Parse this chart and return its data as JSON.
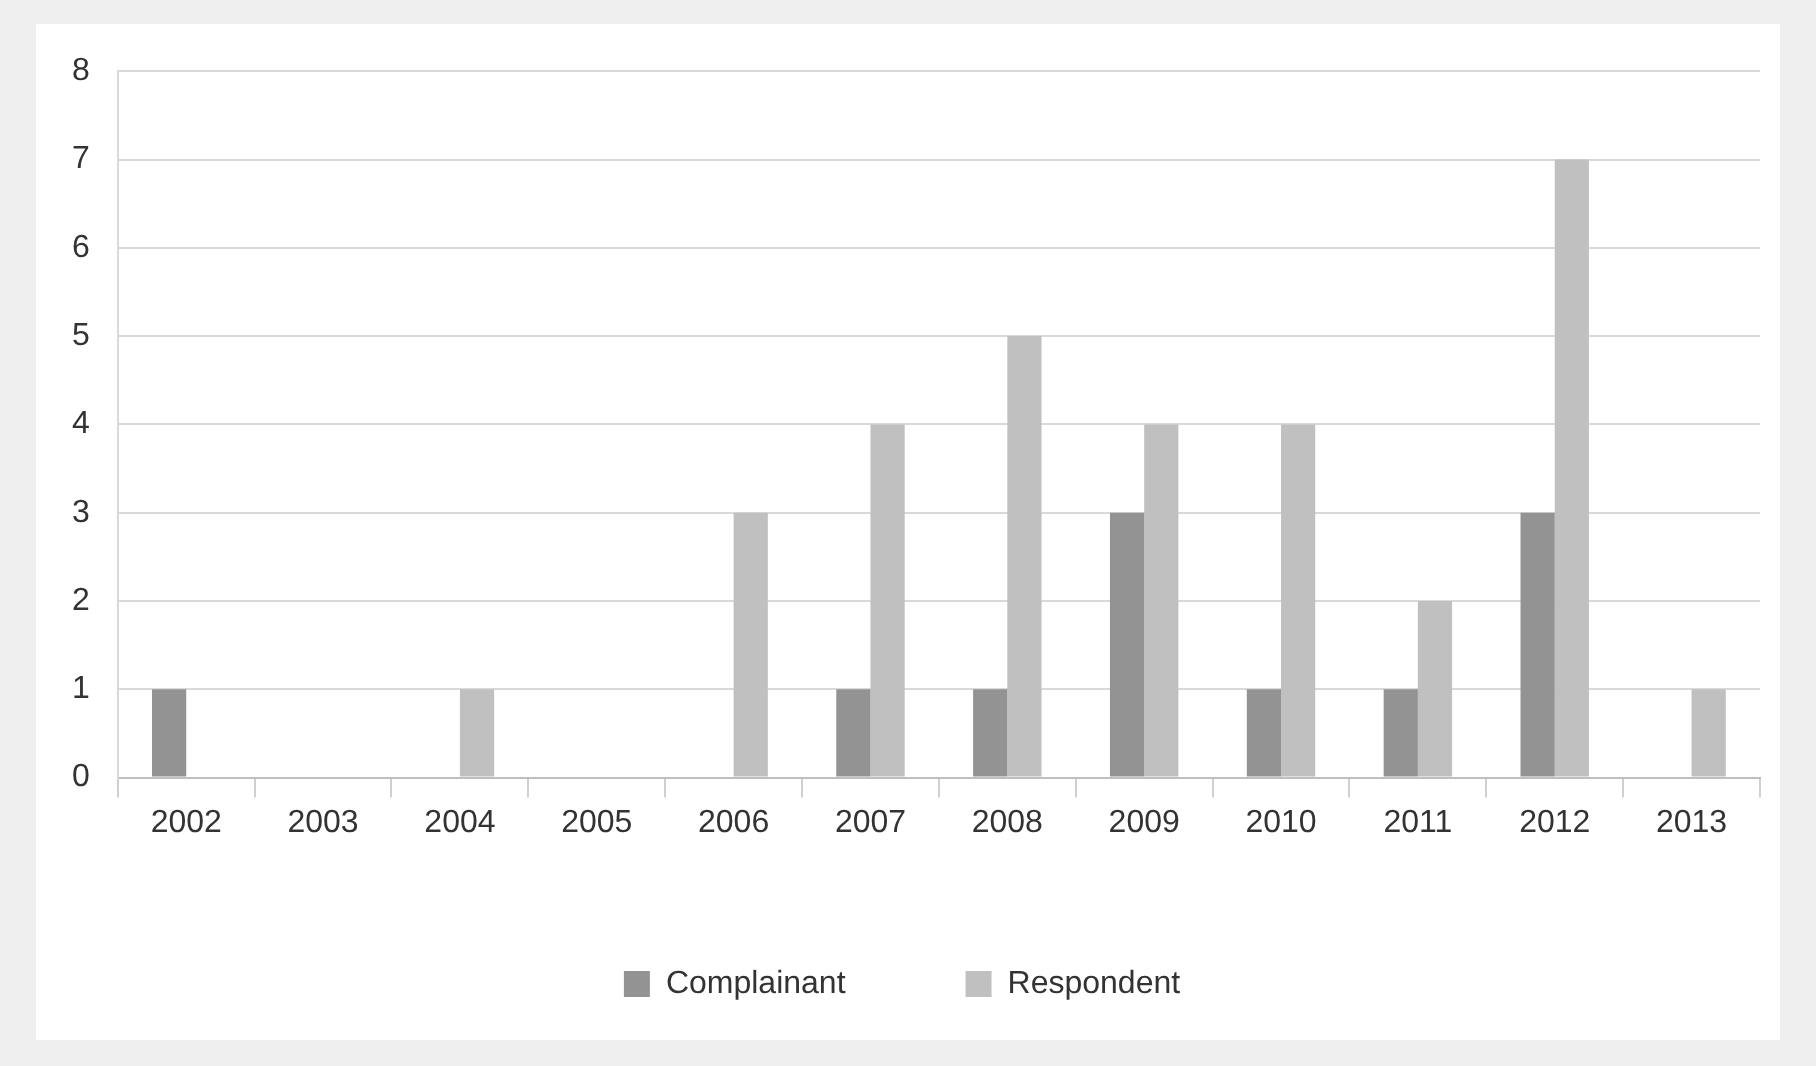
{
  "chart_data": {
    "type": "bar",
    "categories": [
      "2002",
      "2003",
      "2004",
      "2005",
      "2006",
      "2007",
      "2008",
      "2009",
      "2010",
      "2011",
      "2012",
      "2013"
    ],
    "series": [
      {
        "name": "Complainant",
        "color": "#939393",
        "values": [
          1,
          0,
          0,
          0,
          0,
          1,
          1,
          3,
          1,
          1,
          3,
          0
        ]
      },
      {
        "name": "Respondent",
        "color": "#c0c0c0",
        "values": [
          0,
          0,
          1,
          0,
          3,
          4,
          5,
          4,
          4,
          2,
          7,
          1
        ]
      }
    ],
    "ylim": [
      0,
      8
    ],
    "yticks": [
      0,
      1,
      2,
      3,
      4,
      5,
      6,
      7,
      8
    ],
    "grid": "y",
    "legend": "bottom"
  }
}
